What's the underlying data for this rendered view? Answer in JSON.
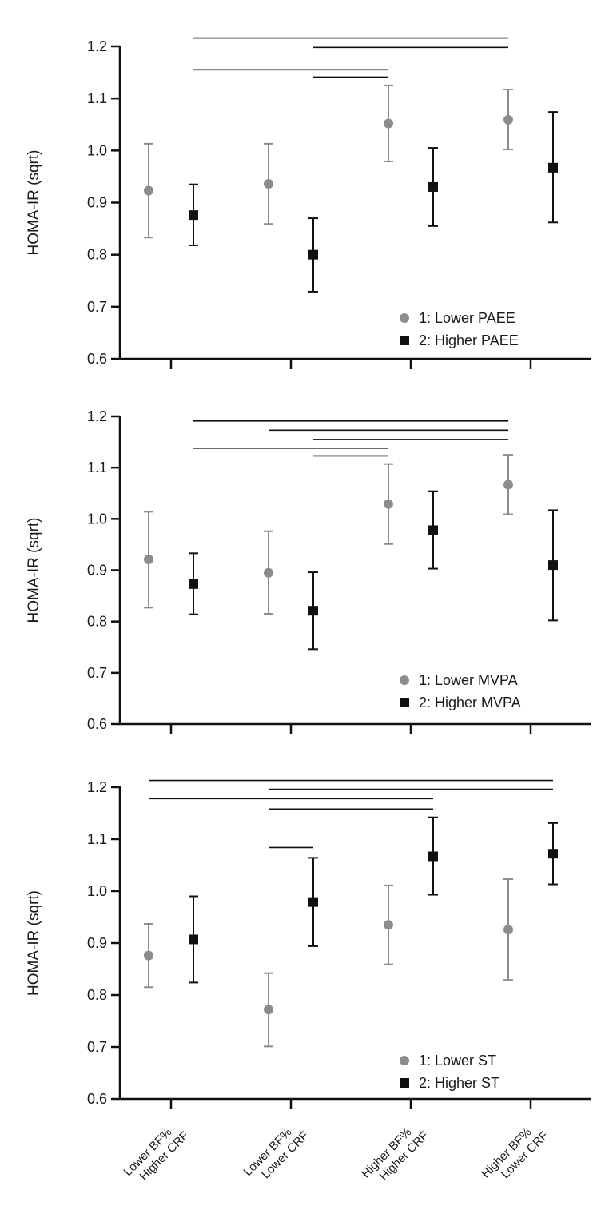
{
  "chart_data": [
    {
      "type": "scatter",
      "ylabel": "HOMA-IR (sqrt)",
      "ylim": [
        0.6,
        1.2
      ],
      "yticks": [
        "0.6",
        "0.7",
        "0.8",
        "0.9",
        "1.0",
        "1.1",
        "1.2"
      ],
      "categories": [
        "Lower BF%\nHigher CRF",
        "Lower BF%\nLower CRF",
        "Higher BF%\nHigher CRF",
        "Higher BF%\nLower CRF"
      ],
      "series": [
        {
          "name": "1: Lower PAEE",
          "color": "#8c8c8c",
          "marker": "circle",
          "mean": [
            0.923,
            0.936,
            1.052,
            1.059
          ],
          "lower": [
            0.833,
            0.859,
            0.979,
            1.002
          ],
          "upper": [
            1.013,
            1.013,
            1.125,
            1.117
          ]
        },
        {
          "name": "2: Higher PAEE",
          "color": "#111111",
          "marker": "square",
          "mean": [
            0.876,
            0.8,
            0.93,
            0.967
          ],
          "lower": [
            0.818,
            0.729,
            0.855,
            0.862
          ],
          "upper": [
            0.935,
            0.87,
            1.005,
            1.074
          ]
        }
      ],
      "significance": [
        {
          "from": [
            0,
            1
          ],
          "to": [
            3,
            0
          ],
          "y": 1.216
        },
        {
          "from": [
            1,
            1
          ],
          "to": [
            3,
            0
          ],
          "y": 1.198
        },
        {
          "from": [
            0,
            1
          ],
          "to": [
            2,
            0
          ],
          "y": 1.155
        },
        {
          "from": [
            1,
            1
          ],
          "to": [
            2,
            0
          ],
          "y": 1.141
        }
      ],
      "legend": "bottom-right"
    },
    {
      "type": "scatter",
      "ylabel": "HOMA-IR (sqrt)",
      "ylim": [
        0.6,
        1.2
      ],
      "yticks": [
        "0.6",
        "0.7",
        "0.8",
        "0.9",
        "1.0",
        "1.1",
        "1.2"
      ],
      "categories": [
        "Lower BF%\nHigher CRF",
        "Lower BF%\nLower CRF",
        "Higher BF%\nHigher CRF",
        "Higher BF%\nLower CRF"
      ],
      "series": [
        {
          "name": "1: Lower MVPA",
          "color": "#8c8c8c",
          "marker": "circle",
          "mean": [
            0.921,
            0.895,
            1.029,
            1.067
          ],
          "lower": [
            0.827,
            0.815,
            0.951,
            1.009
          ],
          "upper": [
            1.014,
            0.976,
            1.107,
            1.125
          ]
        },
        {
          "name": "2: Higher MVPA",
          "color": "#111111",
          "marker": "square",
          "mean": [
            0.873,
            0.821,
            0.978,
            0.91
          ],
          "lower": [
            0.814,
            0.746,
            0.903,
            0.802
          ],
          "upper": [
            0.933,
            0.896,
            1.054,
            1.017
          ]
        }
      ],
      "significance": [
        {
          "from": [
            0,
            1
          ],
          "to": [
            3,
            0
          ],
          "y": 1.191
        },
        {
          "from": [
            1,
            0
          ],
          "to": [
            3,
            0
          ],
          "y": 1.173
        },
        {
          "from": [
            1,
            1
          ],
          "to": [
            3,
            0
          ],
          "y": 1.155
        },
        {
          "from": [
            0,
            1
          ],
          "to": [
            2,
            0
          ],
          "y": 1.138
        },
        {
          "from": [
            1,
            1
          ],
          "to": [
            2,
            0
          ],
          "y": 1.123
        }
      ],
      "legend": "bottom-right"
    },
    {
      "type": "scatter",
      "ylabel": "HOMA-IR (sqrt)",
      "ylim": [
        0.6,
        1.2
      ],
      "yticks": [
        "0.6",
        "0.7",
        "0.8",
        "0.9",
        "1.0",
        "1.1",
        "1.2"
      ],
      "categories": [
        "Lower BF%\nHigher CRF",
        "Lower BF%\nLower CRF",
        "Higher BF%\nHigher CRF",
        "Higher BF%\nLower CRF"
      ],
      "series": [
        {
          "name": "1: Lower ST",
          "color": "#8c8c8c",
          "marker": "circle",
          "mean": [
            0.876,
            0.772,
            0.935,
            0.926
          ],
          "lower": [
            0.815,
            0.701,
            0.859,
            0.829
          ],
          "upper": [
            0.937,
            0.842,
            1.011,
            1.023
          ]
        },
        {
          "name": "2: Higher ST",
          "color": "#111111",
          "marker": "square",
          "mean": [
            0.907,
            0.979,
            1.067,
            1.072
          ],
          "lower": [
            0.824,
            0.894,
            0.993,
            1.013
          ],
          "upper": [
            0.99,
            1.064,
            1.142,
            1.131
          ]
        }
      ],
      "significance": [
        {
          "from": [
            0,
            0
          ],
          "to": [
            3,
            1
          ],
          "y": 1.213
        },
        {
          "from": [
            1,
            0
          ],
          "to": [
            3,
            1
          ],
          "y": 1.196
        },
        {
          "from": [
            0,
            0
          ],
          "to": [
            2,
            1
          ],
          "y": 1.178
        },
        {
          "from": [
            1,
            0
          ],
          "to": [
            2,
            1
          ],
          "y": 1.158
        },
        {
          "from": [
            1,
            0
          ],
          "to": [
            1,
            1
          ],
          "y": 1.084
        }
      ],
      "legend": "bottom-right"
    }
  ]
}
